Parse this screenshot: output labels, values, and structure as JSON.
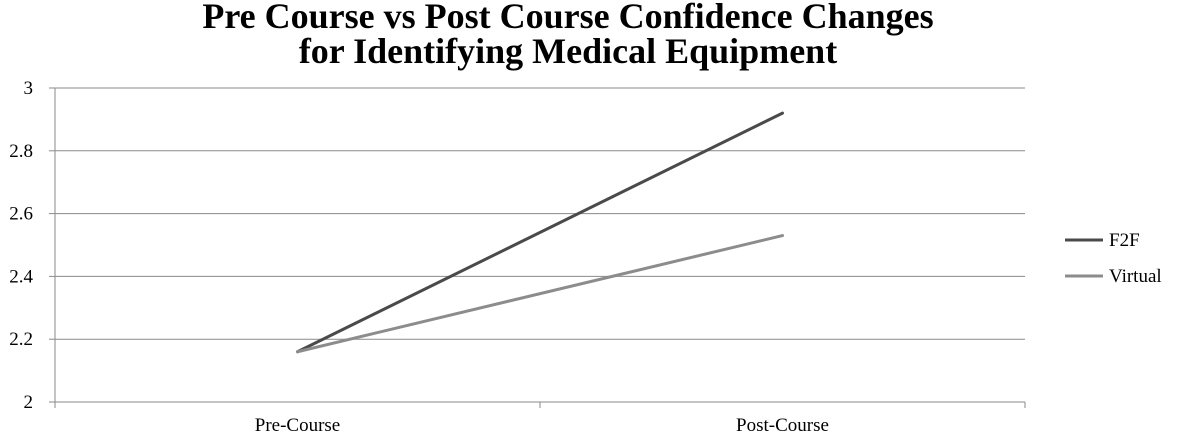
{
  "chart_data": {
    "type": "line",
    "title_lines": [
      "Pre Course vs Post Course Confidence Changes",
      "for Identifying Medical Equipment"
    ],
    "categories": [
      "Pre-Course",
      "Post-Course"
    ],
    "series": [
      {
        "name": "F2F",
        "values": [
          2.16,
          2.92
        ],
        "color": "#4a4a4a"
      },
      {
        "name": "Virtual",
        "values": [
          2.16,
          2.53
        ],
        "color": "#8c8c8c"
      }
    ],
    "ylim": [
      2,
      3
    ],
    "yticks": [
      "2",
      "2.2",
      "2.4",
      "2.6",
      "2.8",
      "3"
    ],
    "ytick_values": [
      2,
      2.2,
      2.4,
      2.6,
      2.8,
      3
    ],
    "grid": true,
    "legend_position": "right"
  }
}
